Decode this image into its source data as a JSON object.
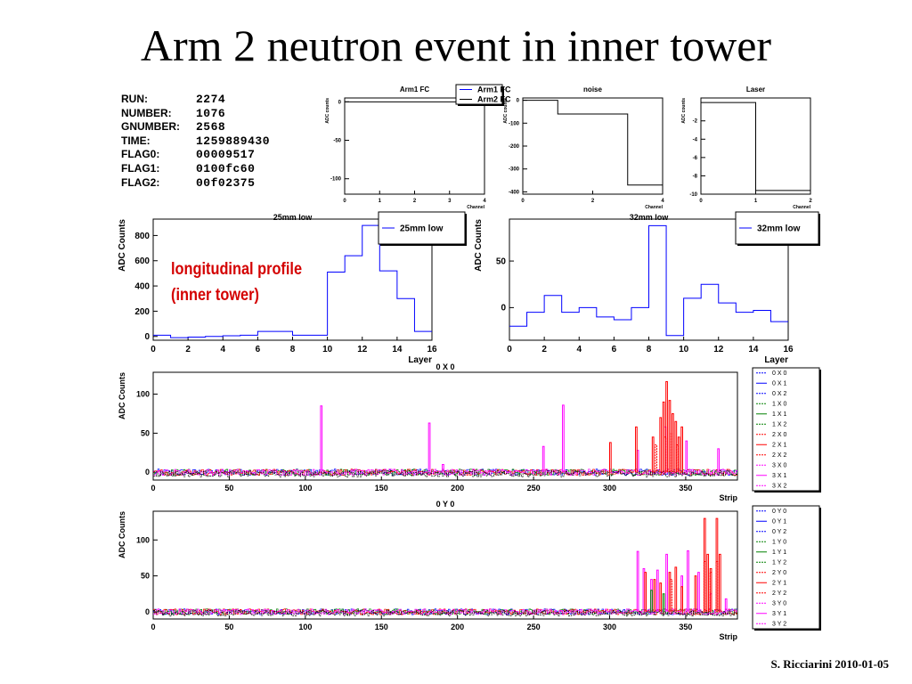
{
  "slide": {
    "title": "Arm 2 neutron event in inner tower",
    "credit": "S. Ricciarini 2010-01-05",
    "annotation_lines": [
      "longitudinal profile",
      "(inner tower)"
    ]
  },
  "run_info": [
    {
      "key": "RUN:",
      "value": "2274"
    },
    {
      "key": "NUMBER:",
      "value": "1076"
    },
    {
      "key": "GNUMBER:",
      "value": "2568"
    },
    {
      "key": "TIME:",
      "value": "1259889430"
    },
    {
      "key": "FLAG0:",
      "value": "00009517"
    },
    {
      "key": "FLAG1:",
      "value": "0100fc60"
    },
    {
      "key": "FLAG2:",
      "value": "00f02375"
    }
  ],
  "colors": {
    "blue": "#0000ff",
    "red": "#ff0000",
    "green": "#008000",
    "magenta": "#ff00ff",
    "black": "#000000",
    "annotation": "#d40000"
  },
  "chart_data": [
    {
      "id": "fc",
      "type": "line",
      "title": "Arm1 FC",
      "xlabel": "Channel",
      "ylabel": "ADC counts",
      "xlim": [
        0,
        4
      ],
      "ylim": [
        -120,
        5
      ],
      "xticks": [
        0,
        1,
        2,
        3,
        4
      ],
      "yticks": [
        0,
        -50,
        -100
      ],
      "legend": [
        "Arm1 FC",
        "Arm2 FC"
      ],
      "legend_position": "top-right",
      "series": [
        {
          "name": "Arm2 FC",
          "color": "#000000",
          "step": true,
          "values": [
            0,
            0,
            0,
            0
          ]
        }
      ]
    },
    {
      "id": "noise",
      "type": "line",
      "title": "noise",
      "xlabel": "Channel",
      "ylabel": "ADC counts",
      "xlim": [
        0,
        4
      ],
      "ylim": [
        -410,
        10
      ],
      "xticks": [
        0,
        2,
        4
      ],
      "yticks": [
        0,
        -100,
        -200,
        -300,
        -400
      ],
      "series": [
        {
          "color": "#000000",
          "step": true,
          "values": [
            0,
            -60,
            -60,
            -370
          ]
        }
      ]
    },
    {
      "id": "laser",
      "type": "line",
      "title": "Laser",
      "xlabel": "Channel",
      "ylabel": "ADC counts",
      "xlim": [
        0,
        2
      ],
      "ylim": [
        -10,
        0.5
      ],
      "xticks": [
        0,
        1,
        2
      ],
      "yticks": [
        -2,
        -4,
        -6,
        -8,
        -10
      ],
      "series": [
        {
          "color": "#000000",
          "step": true,
          "values": [
            0,
            -9.6
          ]
        }
      ]
    },
    {
      "id": "p25",
      "type": "line",
      "title": "25mm low",
      "xlabel": "Layer",
      "ylabel": "ADC Counts",
      "xlim": [
        0,
        16
      ],
      "ylim": [
        -30,
        930
      ],
      "xticks": [
        0,
        2,
        4,
        6,
        8,
        10,
        12,
        14,
        16
      ],
      "yticks": [
        0,
        200,
        400,
        600,
        800
      ],
      "legend": [
        "25mm low"
      ],
      "legend_position": "top-right",
      "series": [
        {
          "name": "25mm low",
          "color": "#0000ff",
          "step": true,
          "values": [
            10,
            -10,
            -5,
            0,
            5,
            10,
            40,
            40,
            10,
            10,
            510,
            640,
            880,
            520,
            300,
            40
          ]
        }
      ]
    },
    {
      "id": "p32",
      "type": "line",
      "title": "32mm low",
      "xlabel": "Layer",
      "ylabel": "ADC Counts",
      "xlim": [
        0,
        16
      ],
      "ylim": [
        -35,
        95
      ],
      "xticks": [
        0,
        2,
        4,
        6,
        8,
        10,
        12,
        14,
        16
      ],
      "yticks": [
        0,
        50
      ],
      "legend": [
        "32mm low"
      ],
      "legend_position": "top-right",
      "series": [
        {
          "name": "32mm low",
          "color": "#0000ff",
          "step": true,
          "values": [
            -20,
            -5,
            13,
            -5,
            0,
            -10,
            -13,
            0,
            88,
            -30,
            10,
            25,
            5,
            -5,
            -3,
            -15
          ]
        }
      ]
    },
    {
      "id": "x0",
      "type": "line",
      "title": "0 X 0",
      "xlabel": "Strip",
      "ylabel": "ADC Counts",
      "xlim": [
        0,
        384
      ],
      "ylim": [
        -10,
        128
      ],
      "xticks": [
        0,
        50,
        100,
        150,
        200,
        250,
        300,
        350
      ],
      "yticks": [
        0,
        50,
        100
      ],
      "legend": [
        "0 X 0",
        "0 X 1",
        "0 X 2",
        "1 X 0",
        "1 X 1",
        "1 X 2",
        "2 X 0",
        "2 X 1",
        "2 X 2",
        "3 X 0",
        "3 X 1",
        "3 X 2"
      ],
      "legend_position": "right",
      "series": [
        {
          "name": "3 X 1",
          "color": "#ff00ff",
          "peaks": [
            [
              110,
              85
            ],
            [
              181,
              63
            ],
            [
              190,
              10
            ],
            [
              256,
              33
            ],
            [
              269,
              86
            ],
            [
              318,
              28
            ],
            [
              336,
              58
            ],
            [
              350,
              40
            ],
            [
              371,
              30
            ]
          ]
        },
        {
          "name": "2 X 1",
          "color": "#ff0000",
          "peaks": [
            [
              300,
              38
            ],
            [
              317,
              58
            ],
            [
              328,
              45
            ],
            [
              333,
              70
            ],
            [
              335,
              90
            ],
            [
              337,
              116
            ],
            [
              339,
              92
            ],
            [
              341,
              75
            ],
            [
              343,
              65
            ],
            [
              345,
              45
            ],
            [
              347,
              58
            ]
          ]
        },
        {
          "name": "2 X 0",
          "color": "#ff0000",
          "dash": true,
          "peaks": [
            [
              330,
              35
            ],
            [
              336,
              45
            ],
            [
              340,
              50
            ],
            [
              344,
              35
            ]
          ]
        }
      ]
    },
    {
      "id": "y0",
      "type": "line",
      "title": "0 Y 0",
      "xlabel": "Strip",
      "ylabel": "ADC Counts",
      "xlim": [
        0,
        384
      ],
      "ylim": [
        -10,
        140
      ],
      "xticks": [
        0,
        50,
        100,
        150,
        200,
        250,
        300,
        350
      ],
      "yticks": [
        0,
        50,
        100
      ],
      "legend": [
        "0 Y 0",
        "0 Y 1",
        "0 Y 2",
        "1 Y 0",
        "1 Y 1",
        "1 Y 2",
        "2 Y 0",
        "2 Y 1",
        "2 Y 2",
        "3 Y 0",
        "3 Y 1",
        "3 Y 2"
      ],
      "legend_position": "right",
      "series": [
        {
          "name": "3 Y 1",
          "color": "#ff00ff",
          "peaks": [
            [
              318,
              84
            ],
            [
              322,
              60
            ],
            [
              327,
              45
            ],
            [
              331,
              58
            ],
            [
              337,
              80
            ],
            [
              347,
              50
            ],
            [
              351,
              85
            ],
            [
              358,
              55
            ],
            [
              366,
              25
            ],
            [
              376,
              18
            ]
          ]
        },
        {
          "name": "2 Y 1",
          "color": "#ff0000",
          "peaks": [
            [
              323,
              55
            ],
            [
              329,
              45
            ],
            [
              333,
              40
            ],
            [
              339,
              55
            ],
            [
              343,
              62
            ],
            [
              347,
              35
            ],
            [
              356,
              50
            ],
            [
              362,
              130
            ],
            [
              364,
              80
            ],
            [
              366,
              60
            ],
            [
              370,
              130
            ],
            [
              372,
              80
            ]
          ]
        },
        {
          "name": "2 Y 0",
          "color": "#ff0000",
          "dash": true,
          "peaks": [
            [
              340,
              45
            ],
            [
              362,
              70
            ],
            [
              366,
              55
            ],
            [
              370,
              70
            ]
          ]
        },
        {
          "name": "1 Y 1",
          "color": "#008000",
          "peaks": [
            [
              327,
              30
            ],
            [
              335,
              25
            ]
          ]
        }
      ]
    }
  ]
}
